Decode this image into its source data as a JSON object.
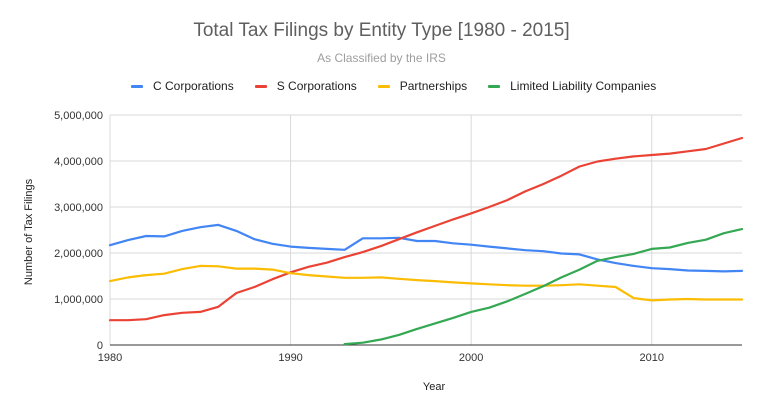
{
  "chart_data": {
    "type": "line",
    "title": "Total Tax Filings by Entity Type [1980 - 2015]",
    "subtitle": "As Classified by the IRS",
    "xlabel": "Year",
    "ylabel": "Number of Tax Filings",
    "xlim": [
      1980,
      2015
    ],
    "ylim": [
      0,
      5000000
    ],
    "xticks": [
      1980,
      1990,
      2000,
      2010
    ],
    "xtick_labels": [
      "1980",
      "1990",
      "2000",
      "2010"
    ],
    "yticks": [
      0,
      1000000,
      2000000,
      3000000,
      4000000,
      5000000
    ],
    "ytick_labels": [
      "0",
      "1,000,000",
      "2,000,000",
      "3,000,000",
      "4,000,000",
      "5,000,000"
    ],
    "grid": true,
    "legend_position": "top",
    "x": [
      1980,
      1981,
      1982,
      1983,
      1984,
      1985,
      1986,
      1987,
      1988,
      1989,
      1990,
      1991,
      1992,
      1993,
      1994,
      1995,
      1996,
      1997,
      1998,
      1999,
      2000,
      2001,
      2002,
      2003,
      2004,
      2005,
      2006,
      2007,
      2008,
      2009,
      2010,
      2011,
      2012,
      2013,
      2014,
      2015
    ],
    "series": [
      {
        "name": "C Corporations",
        "color": "#4285f4",
        "values": [
          2170000,
          2280000,
          2370000,
          2360000,
          2480000,
          2560000,
          2610000,
          2480000,
          2300000,
          2200000,
          2140000,
          2110000,
          2090000,
          2070000,
          2320000,
          2320000,
          2330000,
          2260000,
          2260000,
          2210000,
          2180000,
          2140000,
          2100000,
          2060000,
          2040000,
          1990000,
          1970000,
          1860000,
          1780000,
          1720000,
          1670000,
          1650000,
          1620000,
          1610000,
          1600000,
          1610000
        ]
      },
      {
        "name": "S Corporations",
        "color": "#ea4335",
        "values": [
          540000,
          540000,
          560000,
          650000,
          700000,
          720000,
          830000,
          1130000,
          1260000,
          1430000,
          1580000,
          1700000,
          1790000,
          1910000,
          2020000,
          2150000,
          2300000,
          2450000,
          2590000,
          2730000,
          2860000,
          3000000,
          3150000,
          3340000,
          3500000,
          3680000,
          3880000,
          3990000,
          4050000,
          4100000,
          4130000,
          4160000,
          4210000,
          4260000,
          4380000,
          4500000
        ]
      },
      {
        "name": "Partnerships",
        "color": "#fbbc04",
        "values": [
          1390000,
          1470000,
          1520000,
          1550000,
          1650000,
          1720000,
          1710000,
          1660000,
          1660000,
          1640000,
          1560000,
          1520000,
          1490000,
          1460000,
          1460000,
          1470000,
          1440000,
          1410000,
          1390000,
          1360000,
          1340000,
          1320000,
          1300000,
          1290000,
          1290000,
          1300000,
          1320000,
          1290000,
          1260000,
          1020000,
          970000,
          990000,
          1000000,
          990000,
          990000,
          990000
        ]
      },
      {
        "name": "Limited Liability Companies",
        "color": "#34a853",
        "values": [
          null,
          null,
          null,
          null,
          null,
          null,
          null,
          null,
          null,
          null,
          null,
          null,
          null,
          20000,
          50000,
          120000,
          220000,
          350000,
          470000,
          590000,
          720000,
          810000,
          950000,
          1110000,
          1280000,
          1470000,
          1640000,
          1830000,
          1910000,
          1980000,
          2090000,
          2120000,
          2220000,
          2290000,
          2430000,
          2520000
        ]
      }
    ]
  }
}
